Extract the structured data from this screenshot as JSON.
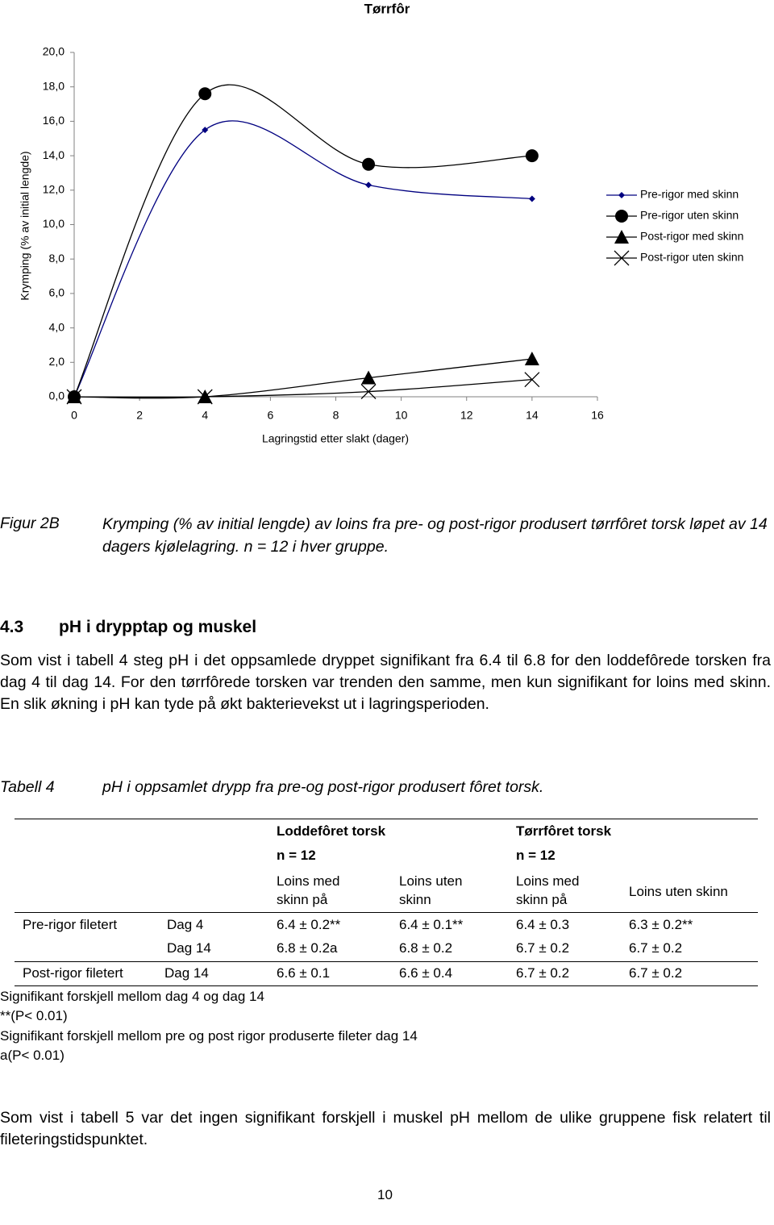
{
  "chart_data": {
    "type": "line",
    "title": "Tørrfôr",
    "x_label": "Lagringstid etter slakt (dager)",
    "y_label": "Krymping (% av initial lengde)",
    "x": [
      0,
      4,
      9,
      14
    ],
    "xlim": [
      0,
      16
    ],
    "xticks": [
      0,
      2,
      4,
      6,
      8,
      10,
      12,
      14,
      16
    ],
    "ylim": [
      0,
      20
    ],
    "yticks": [
      {
        "value": 0,
        "label": "0,0"
      },
      {
        "value": 2,
        "label": "2,0"
      },
      {
        "value": 4,
        "label": "4,0"
      },
      {
        "value": 6,
        "label": "6,0"
      },
      {
        "value": 8,
        "label": "8,0"
      },
      {
        "value": 10,
        "label": "10,0"
      },
      {
        "value": 12,
        "label": "12,0"
      },
      {
        "value": 14,
        "label": "14,0"
      },
      {
        "value": 16,
        "label": "16,0"
      },
      {
        "value": 18,
        "label": "18,0"
      },
      {
        "value": 20,
        "label": "20,0"
      }
    ],
    "legend": "right",
    "smooth": true,
    "series": [
      {
        "name": "Pre-rigor med skinn",
        "color": "#000080",
        "marker": "diamond",
        "values": [
          0,
          15.5,
          12.3,
          11.5
        ]
      },
      {
        "name": "Pre-rigor uten skinn",
        "color": "#000000",
        "marker": "circle",
        "values": [
          0,
          17.6,
          13.5,
          14.0
        ]
      },
      {
        "name": "Post-rigor med skinn",
        "color": "#000000",
        "marker": "triangle",
        "values": [
          0,
          0,
          1.1,
          2.2
        ]
      },
      {
        "name": "Post-rigor uten skinn",
        "color": "#000000",
        "marker": "x",
        "values": [
          0,
          0,
          0.3,
          1.0
        ]
      }
    ]
  },
  "figure_caption": {
    "label": "Figur 2B",
    "text": "Krymping (% av initial lengde) av loins fra pre- og post-rigor produsert tørrfôret torsk løpet av 14 dagers kjølelagring. n = 12 i hver gruppe."
  },
  "section": {
    "number": "4.3",
    "title": "pH i drypptap og muskel"
  },
  "paragraphs": [
    "Som vist i tabell 4 steg pH i det oppsamlede dryppet signifikant fra 6.4 til 6.8 for den loddefôrede torsken fra dag 4 til dag 14. For den tørrfôrede torsken var trenden den samme, men kun signifikant for loins med skinn. En slik økning i pH kan tyde på økt bakterievekst ut i lagringsperioden.",
    "Som vist i tabell 5 var det ingen signifikant forskjell i muskel pH mellom de ulike gruppene fisk relatert til fileteringstidspunktet."
  ],
  "table": {
    "label": "Tabell 4",
    "caption": "pH i oppsamlet drypp fra pre-og post-rigor produsert fôret torsk.",
    "groups": [
      "Loddefôret torsk",
      "Tørrfôret torsk"
    ],
    "n": [
      "n = 12",
      "n = 12"
    ],
    "columns": [
      "Loins med skinn på",
      "Loins uten skinn",
      "Loins med skinn på",
      "Loins uten skinn"
    ],
    "rows": [
      [
        "Pre-rigor filetert",
        "Dag 4",
        "6.4 ± 0.2**",
        "6.4 ± 0.1**",
        "6.4 ± 0.3",
        "6.3 ± 0.2**"
      ],
      [
        null,
        "Dag 14",
        "6.8 ± 0.2a",
        "6.8 ± 0.2",
        "6.7 ± 0.2",
        "6.7 ± 0.2"
      ],
      [
        "Post-rigor filetert",
        "Dag 14",
        "6.6 ± 0.1",
        "6.6 ± 0.4",
        "6.7 ± 0.2",
        "6.7 ± 0.2"
      ]
    ],
    "notes": [
      "Signifikant forskjell mellom dag 4 og dag 14",
      "**(P< 0.01)",
      "Signifikant forskjell mellom pre og post rigor produserte fileter dag 14",
      "a(P< 0.01)"
    ]
  },
  "page_number": "10"
}
